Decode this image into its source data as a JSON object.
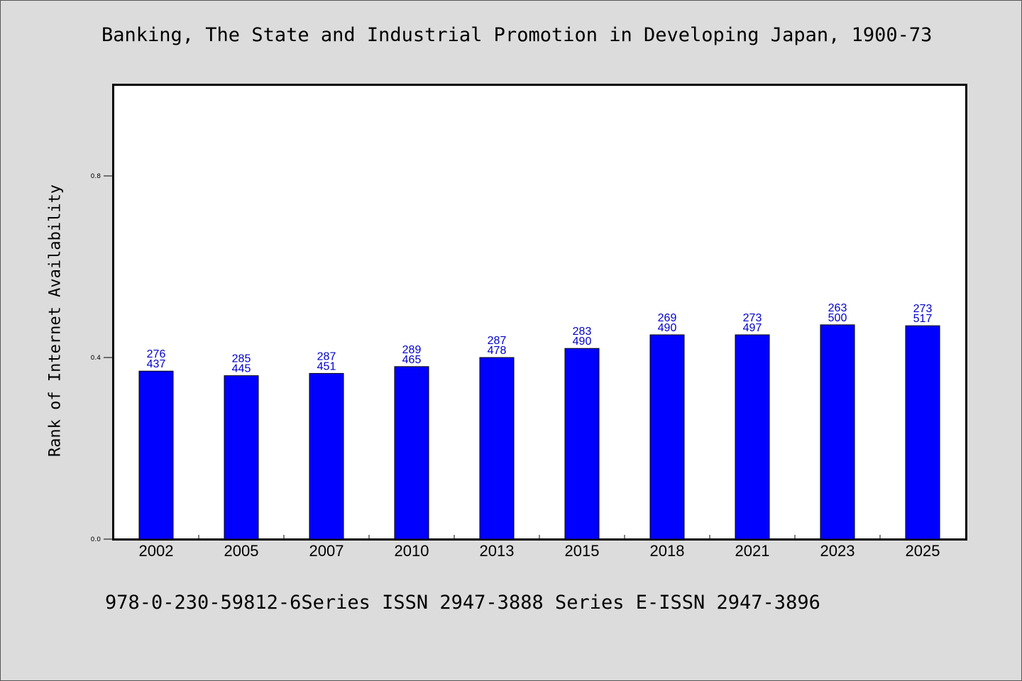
{
  "title": "Banking, The State and Industrial Promotion in Developing Japan, 1900-73",
  "footer": "978-0-230-59812-6Series ISSN 2947-3888 Series E-ISSN 2947-3896",
  "chart_data": {
    "type": "bar",
    "ylabel": "Rank of Internet Availability",
    "xlabel": "",
    "ylim": [
      0,
      1.0
    ],
    "yticks": [
      "0.0",
      "0.4",
      "0.8"
    ],
    "ytick_values": [
      0.0,
      0.4,
      0.8
    ],
    "categories": [
      "2002",
      "2005",
      "2007",
      "2010",
      "2013",
      "2015",
      "2018",
      "2021",
      "2023",
      "2025"
    ],
    "values": [
      0.37,
      0.36,
      0.365,
      0.38,
      0.4,
      0.42,
      0.45,
      0.45,
      0.472,
      0.47
    ],
    "label_top": [
      "276",
      "285",
      "287",
      "289",
      "287",
      "283",
      "269",
      "273",
      "263",
      "273"
    ],
    "label_bottom": [
      "437",
      "445",
      "451",
      "465",
      "478",
      "490",
      "490",
      "497",
      "500",
      "517"
    ],
    "bar_color": "#0000ff",
    "label_color": "#0000cc",
    "grid": false
  }
}
